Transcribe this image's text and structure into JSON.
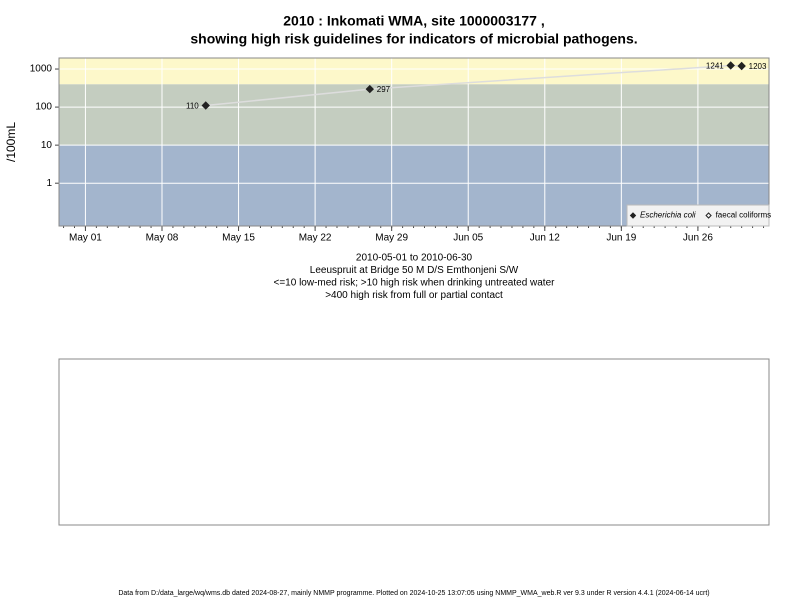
{
  "chart_data": {
    "type": "line",
    "title": "2010 : Inkomati WMA, site 1000003177 ,",
    "subtitle": "showing high risk guidelines for indicators of microbial pathogens.",
    "y_label": "/100mL",
    "y_log": true,
    "ylim": [
      0.075,
      1950
    ],
    "yticks": [
      1,
      10,
      100,
      1000
    ],
    "xlim": [
      "2010-04-28T14:00",
      "2010-07-02T12:00"
    ],
    "xticks": [
      {
        "value": "2010-05-01",
        "label": "May 01"
      },
      {
        "value": "2010-05-08",
        "label": "May 08"
      },
      {
        "value": "2010-05-15",
        "label": "May 15"
      },
      {
        "value": "2010-05-22",
        "label": "May 22"
      },
      {
        "value": "2010-05-29",
        "label": "May 29"
      },
      {
        "value": "2010-06-05",
        "label": "Jun 05"
      },
      {
        "value": "2010-06-12",
        "label": "Jun 12"
      },
      {
        "value": "2010-06-19",
        "label": "Jun 19"
      },
      {
        "value": "2010-06-26",
        "label": "Jun 26"
      }
    ],
    "grid": true,
    "bands": [
      {
        "to": 10,
        "color": "#a3b5cd"
      },
      {
        "from": 10,
        "to": 400,
        "color": "#c4cdc0"
      },
      {
        "from": 400,
        "color": "#fdf8ca"
      }
    ],
    "line_color": "#dddddd",
    "series": [
      {
        "name": "Escherichia coli",
        "marker": "filled",
        "color": "#222222",
        "x": [
          "2010-05-12",
          "2010-05-27",
          "2010-06-29",
          "2010-06-30"
        ],
        "values": [
          110,
          297,
          1241,
          1203
        ]
      },
      {
        "name": "faecal coliforms",
        "marker": "open",
        "color": "#222222",
        "x": [],
        "values": []
      }
    ],
    "legend": "lower right",
    "caption": [
      "2010-05-01 to 2010-06-30",
      "Leeuspruit at Bridge 50 M D/S Emthonjeni S/W",
      "<=10 low-med risk; >10 high risk when drinking untreated water",
      ">400 high risk from full or partial contact"
    ],
    "footer": "Data from D:/data_large/wq/wms.db dated 2024-08-27, mainly NMMP programme. Plotted on 2024-10-25 13:07:05 using NMMP_WMA_web.R ver 9.3 under R version 4.4.1 (2024-06-14 ucrt)"
  }
}
